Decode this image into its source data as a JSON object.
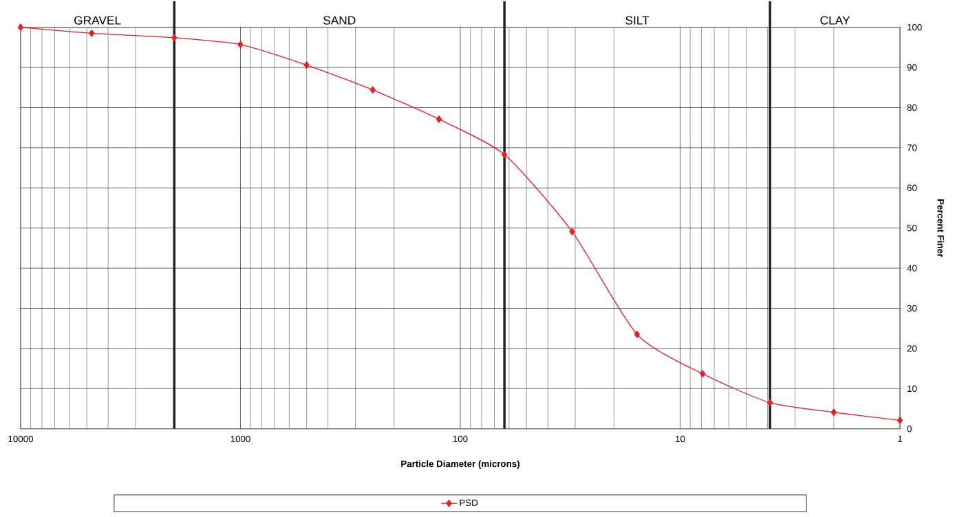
{
  "chart_data": {
    "type": "line",
    "xlabel": "Particle Diameter (microns)",
    "ylabel": "Percent Finer",
    "x": [
      10000,
      4750,
      2000,
      1000,
      500,
      250,
      125,
      63,
      31,
      15.7,
      7.9,
      3.9,
      2,
      1
    ],
    "series": [
      {
        "name": "PSD",
        "color": "#ee1c25",
        "values": [
          100,
          98.5,
          97.4,
          95.7,
          90.6,
          84.4,
          77.1,
          68.3,
          49.1,
          23.5,
          13.7,
          6.5,
          4.1,
          2.1
        ]
      }
    ],
    "log": "x",
    "xlim": [
      10000,
      1
    ],
    "xticks": [
      10000,
      1000,
      100,
      10,
      1
    ],
    "ylim": [
      0,
      100
    ],
    "yticks": [
      0,
      10,
      20,
      30,
      40,
      50,
      60,
      70,
      80,
      90,
      100
    ],
    "grid": true,
    "legend": "bottom",
    "marker": "diamond",
    "line_style": "solid",
    "ref_lines": [
      {
        "axis": "x",
        "value": 2000,
        "color": "#231f20"
      },
      {
        "axis": "x",
        "value": 63,
        "color": "#231f20"
      },
      {
        "axis": "x",
        "value": 3.9,
        "color": "#231f20"
      }
    ],
    "annotations": [
      "GRAVEL",
      "SAND",
      "SILT",
      "CLAY"
    ]
  }
}
